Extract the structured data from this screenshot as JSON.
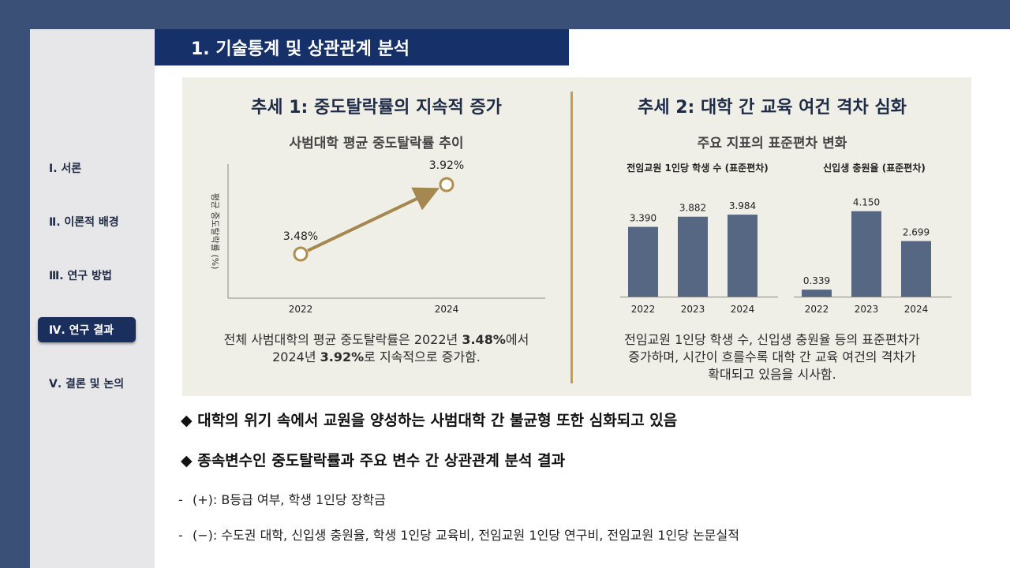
{
  "slide": {
    "title": "1. 기술통계 및 상관관계 분석"
  },
  "sidebar": {
    "items": [
      {
        "label": "Ⅰ. 서론",
        "active": false
      },
      {
        "label": "Ⅱ. 이론적 배경",
        "active": false
      },
      {
        "label": "Ⅲ. 연구 방법",
        "active": false
      },
      {
        "label": "Ⅳ. 연구 결과",
        "active": true
      },
      {
        "label": "Ⅴ. 결론 및 논의",
        "active": false
      }
    ]
  },
  "trend1": {
    "title": "추세 1: 중도탈락률의 지속적 증가",
    "chart_title": "사범대학 평균 중도탈락률 추이",
    "caption_parts": [
      "전체 사범대학의 평균 중도탈락률은 2022년 ",
      "3.48%",
      "에서",
      "2024년 ",
      "3.92%",
      "로 지속적으로 증가함."
    ]
  },
  "trend2": {
    "title": "추세 2: 대학 간 교육 여건 격차 심화",
    "chart_title": "주요 지표의 표준편차 변화",
    "caption_lines": [
      "전임교원 1인당 학생 수, 신입생 충원율 등의 표준편차가",
      "증가하며, 시간이 흐를수록 대학 간 교육 여건의 격차가",
      "확대되고 있음을 시사함."
    ]
  },
  "chart_data": [
    {
      "type": "line",
      "title": "사범대학 평균 중도탈락률 추이",
      "ylabel": "평균 중도탈락률 (%)",
      "x": [
        "2022",
        "2024"
      ],
      "values": [
        3.48,
        3.92
      ],
      "data_labels": [
        "3.48%",
        "3.92%"
      ],
      "color": "#a4884f"
    },
    {
      "type": "bar",
      "title": "전임교원 1인당 학생 수 (표준편차)",
      "categories": [
        "2022",
        "2023",
        "2024"
      ],
      "values": [
        3.39,
        3.882,
        3.984
      ],
      "data_labels": [
        "3.390",
        "3.882",
        "3.984"
      ],
      "color": "#566783"
    },
    {
      "type": "bar",
      "title": "신입생 충원율 (표준편차)",
      "categories": [
        "2022",
        "2023",
        "2024"
      ],
      "values": [
        0.339,
        4.15,
        2.699
      ],
      "data_labels": [
        "0.339",
        "4.150",
        "2.699"
      ],
      "color": "#566783"
    }
  ],
  "bullets": [
    "◆ 대학의 위기 속에서 교원을 양성하는 사범대학 간 불균형 또한 심화되고 있음",
    "◆ 종속변수인 중도탈락률과 주요 변수 간 상관관계 분석 결과"
  ],
  "sub_lines": [
    {
      "dash": "-",
      "text": "(+): B등급 여부, 학생 1인당 장학금"
    },
    {
      "dash": "-",
      "text": "(−): 수도권 대학, 신입생 충원율, 학생 1인당 교육비, 전임교원 1인당 연구비, 전임교원 1인당 논문실적"
    }
  ]
}
